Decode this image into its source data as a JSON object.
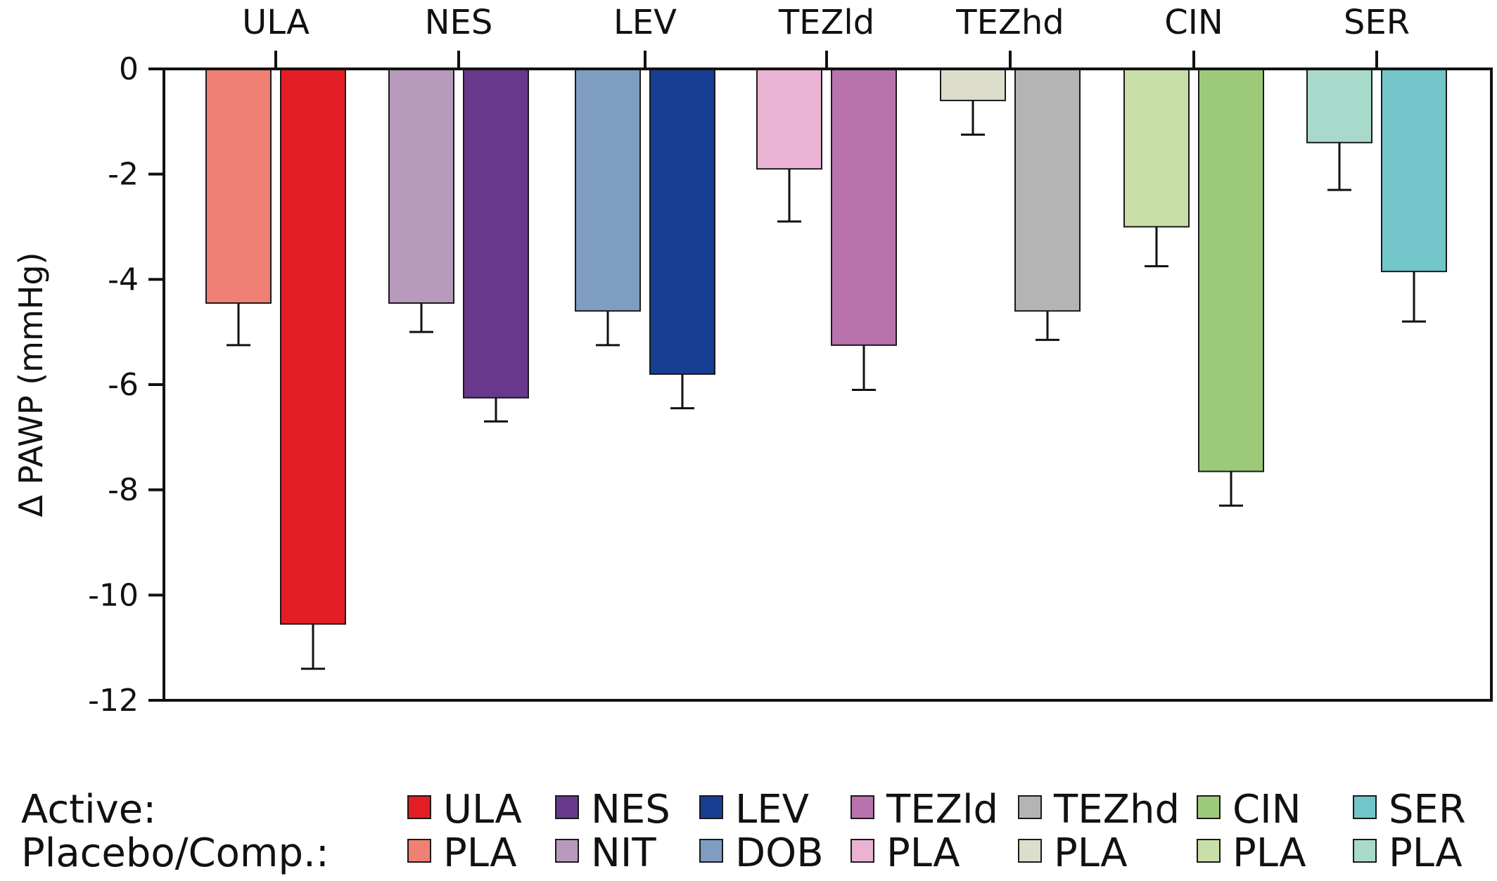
{
  "chart_data": {
    "type": "bar",
    "title": "",
    "xlabel": "",
    "ylabel": "Δ PAWP (mmHg)",
    "ylim": [
      -12,
      0
    ],
    "yticks": [
      0,
      -2,
      -4,
      -6,
      -8,
      -10,
      -12
    ],
    "ytick_labels": [
      "0",
      "-2",
      "-4",
      "-6",
      "-8",
      "-10",
      "-12"
    ],
    "x_axis_position": "top",
    "grid": false,
    "legend_placement": "bottom",
    "categories": [
      "ULA",
      "NES",
      "LEV",
      "TEZld",
      "TEZhd",
      "CIN",
      "SER"
    ],
    "series": [
      {
        "name": "Placebo/Comp.",
        "values": [
          -4.45,
          -4.45,
          -4.6,
          -1.9,
          -0.6,
          -3.0,
          -1.4
        ],
        "error_minus": [
          0.8,
          0.55,
          0.65,
          1.0,
          0.65,
          0.75,
          0.9
        ],
        "colors": [
          "#F08073",
          "#B79ABC",
          "#7F9DC1",
          "#EAB3D3",
          "#DCDDCB",
          "#C8DFA8",
          "#A8DACC"
        ]
      },
      {
        "name": "Active",
        "values": [
          -10.55,
          -6.25,
          -5.8,
          -5.25,
          -4.6,
          -7.65,
          -3.85
        ],
        "error_minus": [
          0.85,
          0.45,
          0.65,
          0.85,
          0.55,
          0.65,
          0.95
        ],
        "colors": [
          "#E31E24",
          "#67388C",
          "#163F93",
          "#B872AC",
          "#B4B4B4",
          "#9DC97A",
          "#72C5C8"
        ]
      }
    ]
  },
  "legend": {
    "active_label": "Active:",
    "placebo_label": "Placebo/Comp.:",
    "active_items": [
      {
        "label": "ULA",
        "color": "#E31E24"
      },
      {
        "label": "NES",
        "color": "#67388C"
      },
      {
        "label": "LEV",
        "color": "#163F93"
      },
      {
        "label": "TEZld",
        "color": "#B872AC"
      },
      {
        "label": "TEZhd",
        "color": "#B4B4B4"
      },
      {
        "label": "CIN",
        "color": "#9DC97A"
      },
      {
        "label": "SER",
        "color": "#72C5C8"
      }
    ],
    "placebo_items": [
      {
        "label": "PLA",
        "color": "#F08073"
      },
      {
        "label": "NIT",
        "color": "#B79ABC"
      },
      {
        "label": "DOB",
        "color": "#7F9DC1"
      },
      {
        "label": "PLA",
        "color": "#EAB3D3"
      },
      {
        "label": "PLA",
        "color": "#DCDDCB"
      },
      {
        "label": "PLA",
        "color": "#C8DFA8"
      },
      {
        "label": "PLA",
        "color": "#A8DACC"
      }
    ]
  }
}
